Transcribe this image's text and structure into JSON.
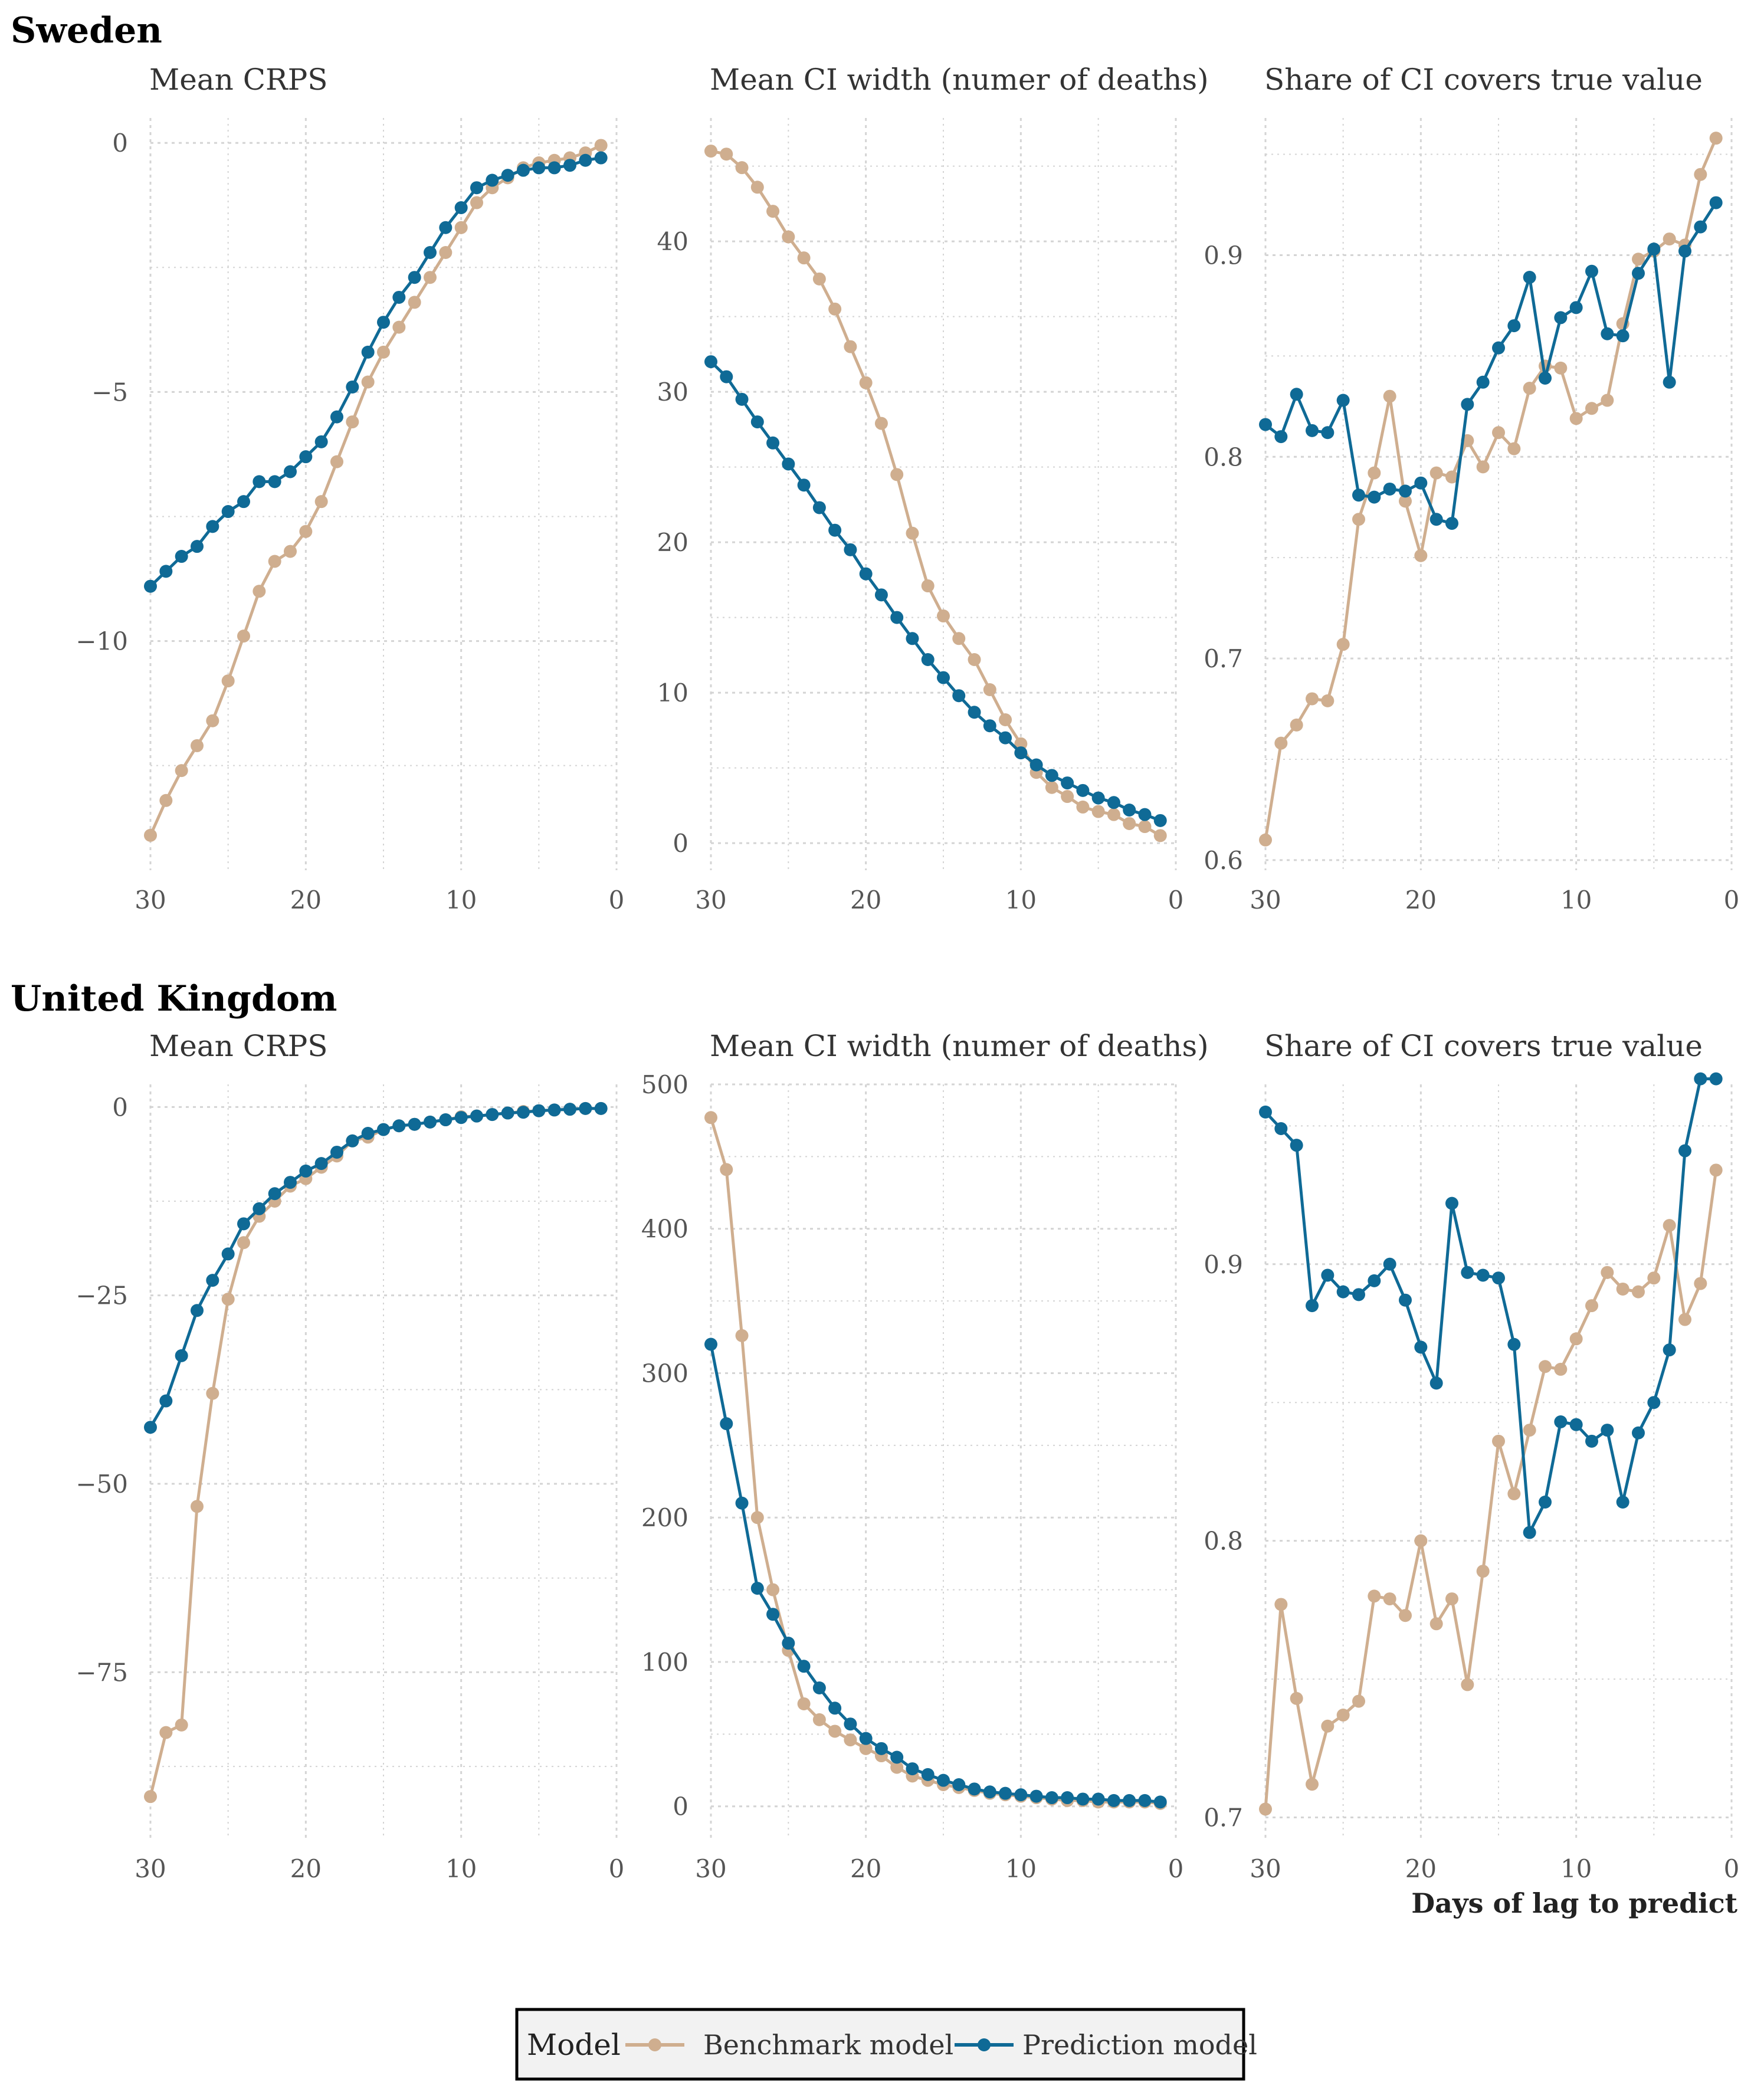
{
  "colors": {
    "benchmark": "#cfae8f",
    "prediction": "#0f6a96",
    "grid": "#d4d4d4"
  },
  "x_axis_title": "Days of lag to predict",
  "legend": {
    "title": "Model",
    "items": [
      "Benchmark model",
      "Prediction model"
    ]
  },
  "countries": [
    "Sweden",
    "United Kingdom"
  ],
  "chart_data": [
    {
      "type": "line",
      "country": "Sweden",
      "title": "Mean CRPS",
      "x": [
        30,
        29,
        28,
        27,
        26,
        25,
        24,
        23,
        22,
        21,
        20,
        19,
        18,
        17,
        16,
        15,
        14,
        13,
        12,
        11,
        10,
        9,
        8,
        7,
        6,
        5,
        4,
        3,
        2,
        1
      ],
      "xlim": [
        30,
        0
      ],
      "xticks": [
        30,
        20,
        10,
        0
      ],
      "ylim": [
        -14.6,
        0.5
      ],
      "yticks": [
        0,
        -5,
        -10
      ],
      "grid": true,
      "series": [
        {
          "name": "Benchmark model",
          "values": [
            -13.9,
            -13.2,
            -12.6,
            -12.1,
            -11.6,
            -10.8,
            -9.9,
            -9.0,
            -8.4,
            -8.2,
            -7.8,
            -7.2,
            -6.4,
            -5.6,
            -4.8,
            -4.2,
            -3.7,
            -3.2,
            -2.7,
            -2.2,
            -1.7,
            -1.2,
            -0.9,
            -0.7,
            -0.5,
            -0.4,
            -0.35,
            -0.3,
            -0.2,
            -0.05
          ]
        },
        {
          "name": "Prediction model",
          "values": [
            -8.9,
            -8.6,
            -8.3,
            -8.1,
            -7.7,
            -7.4,
            -7.2,
            -6.8,
            -6.8,
            -6.6,
            -6.3,
            -6.0,
            -5.5,
            -4.9,
            -4.2,
            -3.6,
            -3.1,
            -2.7,
            -2.2,
            -1.7,
            -1.3,
            -0.9,
            -0.75,
            -0.65,
            -0.55,
            -0.5,
            -0.5,
            -0.45,
            -0.35,
            -0.3
          ]
        }
      ]
    },
    {
      "type": "line",
      "country": "Sweden",
      "title": "Mean CI width (numer of deaths)",
      "x": [
        30,
        29,
        28,
        27,
        26,
        25,
        24,
        23,
        22,
        21,
        20,
        19,
        18,
        17,
        16,
        15,
        14,
        13,
        12,
        11,
        10,
        9,
        8,
        7,
        6,
        5,
        4,
        3,
        2,
        1
      ],
      "xlim": [
        30,
        0
      ],
      "xticks": [
        30,
        20,
        10,
        0
      ],
      "ylim": [
        -1.8,
        48.2
      ],
      "yticks": [
        0,
        10,
        20,
        30,
        40
      ],
      "grid": true,
      "series": [
        {
          "name": "Benchmark model",
          "values": [
            46.0,
            45.8,
            44.9,
            43.6,
            42.0,
            40.3,
            38.9,
            37.5,
            35.5,
            33.0,
            30.6,
            27.9,
            24.5,
            20.6,
            17.1,
            15.1,
            13.6,
            12.2,
            10.2,
            8.2,
            6.6,
            4.7,
            3.7,
            3.1,
            2.4,
            2.1,
            1.9,
            1.3,
            1.1,
            0.5
          ]
        },
        {
          "name": "Prediction model",
          "values": [
            32.0,
            31.0,
            29.5,
            28.0,
            26.6,
            25.2,
            23.8,
            22.3,
            20.8,
            19.5,
            17.9,
            16.5,
            15.0,
            13.6,
            12.2,
            11.0,
            9.8,
            8.7,
            7.8,
            7.0,
            6.0,
            5.2,
            4.5,
            4.0,
            3.5,
            3.0,
            2.7,
            2.2,
            1.9,
            1.5
          ]
        }
      ]
    },
    {
      "type": "line",
      "country": "Sweden",
      "title": "Share of CI covers true value",
      "x": [
        30,
        29,
        28,
        27,
        26,
        25,
        24,
        23,
        22,
        21,
        20,
        19,
        18,
        17,
        16,
        15,
        14,
        13,
        12,
        11,
        10,
        9,
        8,
        7,
        6,
        5,
        4,
        3,
        2,
        1
      ],
      "xlim": [
        30,
        0
      ],
      "xticks": [
        30,
        20,
        10,
        0
      ],
      "ylim": [
        0.595,
        0.968
      ],
      "yticks": [
        0.6,
        0.7,
        0.8,
        0.9
      ],
      "grid": true,
      "series": [
        {
          "name": "Benchmark model",
          "values": [
            0.61,
            0.658,
            0.667,
            0.68,
            0.679,
            0.707,
            0.769,
            0.792,
            0.83,
            0.778,
            0.751,
            0.792,
            0.79,
            0.808,
            0.795,
            0.812,
            0.804,
            0.834,
            0.845,
            0.844,
            0.819,
            0.824,
            0.828,
            0.866,
            0.898,
            0.902,
            0.908,
            0.905,
            0.94,
            0.958
          ]
        },
        {
          "name": "Prediction model",
          "values": [
            0.816,
            0.81,
            0.831,
            0.813,
            0.812,
            0.828,
            0.781,
            0.78,
            0.784,
            0.783,
            0.787,
            0.769,
            0.767,
            0.826,
            0.837,
            0.854,
            0.865,
            0.889,
            0.839,
            0.869,
            0.874,
            0.892,
            0.861,
            0.86,
            0.891,
            0.903,
            0.837,
            0.902,
            0.914,
            0.926
          ]
        }
      ]
    },
    {
      "type": "line",
      "country": "United Kingdom",
      "title": "Mean CRPS",
      "x": [
        30,
        29,
        28,
        27,
        26,
        25,
        24,
        23,
        22,
        21,
        20,
        19,
        18,
        17,
        16,
        15,
        14,
        13,
        12,
        11,
        10,
        9,
        8,
        7,
        6,
        5,
        4,
        3,
        2,
        1
      ],
      "xlim": [
        30,
        0
      ],
      "xticks": [
        30,
        20,
        10,
        0
      ],
      "ylim": [
        -97.2,
        3.0
      ],
      "yticks": [
        0,
        -25,
        -50,
        -75
      ],
      "grid": true,
      "series": [
        {
          "name": "Benchmark model",
          "values": [
            -91.5,
            -83.0,
            -82.0,
            -53.0,
            -38.0,
            -25.5,
            -18.0,
            -14.5,
            -12.5,
            -10.5,
            -9.5,
            -8.0,
            -6.5,
            -4.5,
            -4.0,
            -3.0,
            -2.5,
            -2.3,
            -2.0,
            -1.7,
            -1.3,
            -1.2,
            -1.0,
            -0.8,
            -0.6,
            -0.5,
            -0.4,
            -0.3,
            -0.2,
            -0.2
          ]
        },
        {
          "name": "Prediction model",
          "values": [
            -42.5,
            -39.0,
            -33.0,
            -27.0,
            -23.0,
            -19.5,
            -15.5,
            -13.5,
            -11.5,
            -10.0,
            -8.5,
            -7.5,
            -6.0,
            -4.5,
            -3.5,
            -3.0,
            -2.5,
            -2.3,
            -2.0,
            -1.7,
            -1.4,
            -1.2,
            -1.0,
            -0.8,
            -0.7,
            -0.5,
            -0.4,
            -0.3,
            -0.2,
            -0.2
          ]
        }
      ]
    },
    {
      "type": "line",
      "country": "United Kingdom",
      "title": "Mean CI width (numer of deaths)",
      "x": [
        30,
        29,
        28,
        27,
        26,
        25,
        24,
        23,
        22,
        21,
        20,
        19,
        18,
        17,
        16,
        15,
        14,
        13,
        12,
        11,
        10,
        9,
        8,
        7,
        6,
        5,
        4,
        3,
        2,
        1
      ],
      "xlim": [
        30,
        0
      ],
      "xticks": [
        30,
        20,
        10,
        0
      ],
      "ylim": [
        -23.0,
        500.0
      ],
      "yticks": [
        0,
        100,
        200,
        300,
        400,
        500
      ],
      "grid": true,
      "series": [
        {
          "name": "Benchmark model",
          "values": [
            477,
            441,
            326,
            200,
            150,
            108,
            71,
            60,
            52,
            46,
            40,
            35,
            27,
            21,
            18,
            15,
            13,
            11,
            9,
            8,
            7,
            6,
            5,
            4,
            4,
            3,
            3,
            3,
            3,
            2
          ]
        },
        {
          "name": "Prediction model",
          "values": [
            320,
            265,
            210,
            151,
            133,
            113,
            97,
            82,
            68,
            57,
            47,
            40,
            34,
            26,
            22,
            18,
            15,
            12,
            10,
            9,
            8,
            7,
            6,
            6,
            5,
            5,
            4,
            4,
            4,
            3
          ]
        }
      ]
    },
    {
      "type": "line",
      "country": "United Kingdom",
      "title": "Share of CI covers true value",
      "x": [
        30,
        29,
        28,
        27,
        26,
        25,
        24,
        23,
        22,
        21,
        20,
        19,
        18,
        17,
        16,
        15,
        14,
        13,
        12,
        11,
        10,
        9,
        8,
        7,
        6,
        5,
        4,
        3,
        2,
        1
      ],
      "xlim": [
        30,
        0
      ],
      "xticks": [
        30,
        20,
        10,
        0
      ],
      "ylim": [
        0.692,
        0.965
      ],
      "yticks": [
        0.7,
        0.8,
        0.9
      ],
      "grid": true,
      "series": [
        {
          "name": "Benchmark model",
          "values": [
            0.703,
            0.777,
            0.743,
            0.712,
            0.733,
            0.737,
            0.742,
            0.78,
            0.779,
            0.773,
            0.8,
            0.77,
            0.779,
            0.748,
            0.789,
            0.836,
            0.817,
            0.84,
            0.863,
            0.862,
            0.873,
            0.885,
            0.897,
            0.891,
            0.89,
            0.895,
            0.914,
            0.88,
            0.893,
            0.934
          ]
        },
        {
          "name": "Prediction model",
          "values": [
            0.955,
            0.949,
            0.943,
            0.885,
            0.896,
            0.89,
            0.889,
            0.894,
            0.9,
            0.887,
            0.87,
            0.857,
            0.922,
            0.897,
            0.896,
            0.895,
            0.871,
            0.803,
            0.814,
            0.843,
            0.842,
            0.836,
            0.84,
            0.814,
            0.839,
            0.85,
            0.869,
            0.941,
            0.967,
            0.967
          ]
        }
      ]
    }
  ]
}
